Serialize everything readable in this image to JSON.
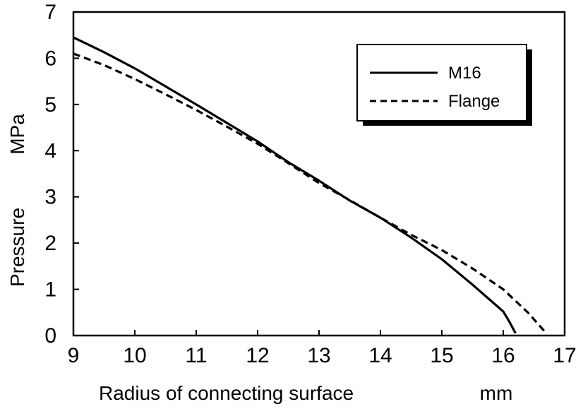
{
  "chart_data": {
    "type": "line",
    "title": "",
    "xlabel": "Radius of connecting surface",
    "xunit": "mm",
    "ylabel": "Pressure",
    "yunit": "MPa",
    "xlim": [
      9,
      17
    ],
    "ylim": [
      0,
      7
    ],
    "xticks": [
      9,
      10,
      11,
      12,
      13,
      14,
      15,
      16,
      17
    ],
    "yticks": [
      0,
      1,
      2,
      3,
      4,
      5,
      6,
      7
    ],
    "grid": false,
    "legend": "top-right",
    "series": [
      {
        "name": "M16",
        "style": "solid",
        "color": "#000000",
        "x": [
          9.0,
          9.5,
          10.0,
          10.5,
          11.0,
          11.5,
          12.0,
          12.5,
          13.0,
          13.5,
          14.0,
          14.5,
          15.0,
          15.5,
          16.0,
          16.1,
          16.2
        ],
        "y": [
          6.45,
          6.13,
          5.78,
          5.39,
          5.0,
          4.6,
          4.2,
          3.75,
          3.35,
          2.92,
          2.55,
          2.12,
          1.65,
          1.1,
          0.52,
          0.3,
          0.05
        ]
      },
      {
        "name": "Flange",
        "style": "dashed",
        "color": "#000000",
        "x": [
          9.0,
          9.5,
          10.0,
          10.5,
          11.0,
          11.5,
          12.0,
          12.5,
          13.0,
          13.5,
          14.0,
          14.5,
          15.0,
          15.5,
          16.0,
          16.4,
          16.7
        ],
        "y": [
          6.1,
          5.85,
          5.55,
          5.22,
          4.88,
          4.52,
          4.15,
          3.73,
          3.3,
          2.93,
          2.55,
          2.18,
          1.85,
          1.45,
          1.0,
          0.5,
          0.05
        ]
      }
    ]
  }
}
